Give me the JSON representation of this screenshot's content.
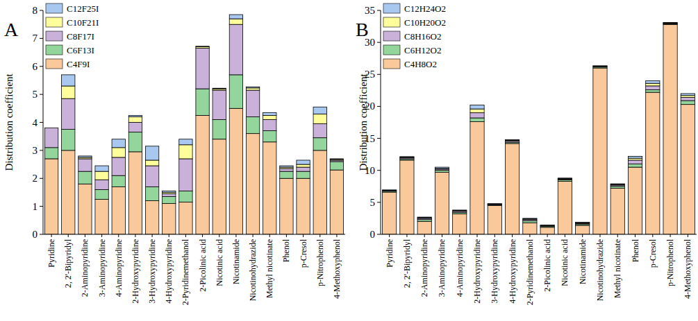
{
  "chart_data": [
    {
      "type": "bar",
      "title": "A",
      "y_label": "Distribution coefficient",
      "stacked": true,
      "legend": "upper-left",
      "categories": [
        "Pyridine",
        "2, 2'-Bipyridyl",
        "2-Aminopyridine",
        "3-Aminopyridine",
        "4-Aminopyridine",
        "2-Hydroxypyridine",
        "3-Hydroxypyridine",
        "4-Hydroxypyridine",
        "2-Pyridinemethanol",
        "2-Picolinic acid",
        "Nicotinic acid",
        "Nicotinamide",
        "Nicotinohydrazide",
        "Methyl nicotinate",
        "Phenol",
        "p-Cresol",
        "p-Nitrophenol",
        "4-Methoxyphenol"
      ],
      "ylim": [
        0,
        8
      ],
      "yticks": [
        0,
        1,
        2,
        3,
        4,
        5,
        6,
        7,
        8
      ],
      "series": [
        {
          "name": "C4F9I",
          "color": "#f9c89b",
          "values": [
            2.7,
            3.0,
            1.8,
            1.25,
            1.7,
            2.95,
            1.2,
            1.1,
            1.15,
            4.25,
            3.4,
            4.5,
            3.6,
            3.3,
            2.0,
            2.0,
            3.0,
            2.3
          ]
        },
        {
          "name": "C6F13I",
          "color": "#93d59b",
          "values": [
            0.4,
            0.75,
            0.45,
            0.35,
            0.4,
            0.7,
            0.5,
            0.25,
            0.4,
            0.95,
            0.7,
            1.2,
            0.6,
            0.4,
            0.25,
            0.25,
            0.45,
            0.3
          ]
        },
        {
          "name": "C8F17I",
          "color": "#c9b1da",
          "values": [
            0.7,
            1.1,
            0.45,
            0.35,
            0.65,
            0.35,
            0.75,
            0.1,
            1.15,
            1.45,
            1.05,
            1.8,
            0.95,
            0.4,
            0.1,
            0.15,
            0.5,
            0.05
          ]
        },
        {
          "name": "C10F21I",
          "color": "#fdfd9b",
          "values": [
            0,
            0.45,
            0.05,
            0.3,
            0.35,
            0.2,
            0.2,
            0.05,
            0.5,
            0.05,
            0.05,
            0.2,
            0.08,
            0.15,
            0.05,
            0.1,
            0.35,
            0.03
          ]
        },
        {
          "name": "C12F25I",
          "color": "#a9c8f0",
          "values": [
            0,
            0.4,
            0.05,
            0.2,
            0.3,
            0.05,
            0.5,
            0.05,
            0.2,
            0.02,
            0.02,
            0.15,
            0.04,
            0.1,
            0.05,
            0.15,
            0.25,
            0.02
          ]
        }
      ]
    },
    {
      "type": "bar",
      "title": "B",
      "y_label": "Distribution coefficient",
      "stacked": true,
      "legend": "upper-left",
      "categories": [
        "Pyridine",
        "2, 2'-Bipyridyl",
        "2-Aminopyridine",
        "3-Aminopyridine",
        "4-Aminopyridine",
        "2-Hydroxypyridine",
        "3-Hydroxypyridine",
        "4-Hydroxypyridine",
        "2-Pyridinemethanol",
        "2-Picolinic acid",
        "Nicotinic acid",
        "Nicotinamide",
        "Nicotinohydrazide",
        "Methyl nicotinate",
        "Phenol",
        "p-Cresol",
        "p-Nitrophenol",
        "4-Methoxyphenol"
      ],
      "ylim": [
        0,
        35
      ],
      "yticks": [
        0,
        5,
        10,
        15,
        20,
        25,
        30,
        35
      ],
      "series": [
        {
          "name": "C4H8O2",
          "color": "#f9c89b",
          "values": [
            6.6,
            11.6,
            2.0,
            9.7,
            3.2,
            17.6,
            4.5,
            14.2,
            1.8,
            1.1,
            8.3,
            1.4,
            26.0,
            7.2,
            10.5,
            22.2,
            32.8,
            20.3
          ]
        },
        {
          "name": "C6H12O2",
          "color": "#93d59b",
          "values": [
            0.15,
            0.2,
            0.3,
            0.3,
            0.2,
            0.6,
            0.1,
            0.2,
            0.3,
            0.15,
            0.2,
            0.2,
            0.15,
            0.3,
            0.5,
            0.4,
            0.1,
            0.6
          ]
        },
        {
          "name": "C8H16O2",
          "color": "#c9b1da",
          "values": [
            0.1,
            0.15,
            0.2,
            0.2,
            0.2,
            0.8,
            0.1,
            0.2,
            0.2,
            0.1,
            0.1,
            0.1,
            0.1,
            0.2,
            0.6,
            0.6,
            0.1,
            0.5
          ]
        },
        {
          "name": "C10H20O2",
          "color": "#fdfd9b",
          "values": [
            0.05,
            0.1,
            0.1,
            0.1,
            0.1,
            0.6,
            0.05,
            0.1,
            0.1,
            0.05,
            0.1,
            0.1,
            0.05,
            0.1,
            0.3,
            0.4,
            0.05,
            0.3
          ]
        },
        {
          "name": "C12H24O2",
          "color": "#a9c8f0",
          "values": [
            0.05,
            0.1,
            0.1,
            0.2,
            0.1,
            0.6,
            0.05,
            0.1,
            0.1,
            0.05,
            0.1,
            0.1,
            0.05,
            0.1,
            0.3,
            0.4,
            0.05,
            0.3
          ]
        }
      ]
    }
  ]
}
